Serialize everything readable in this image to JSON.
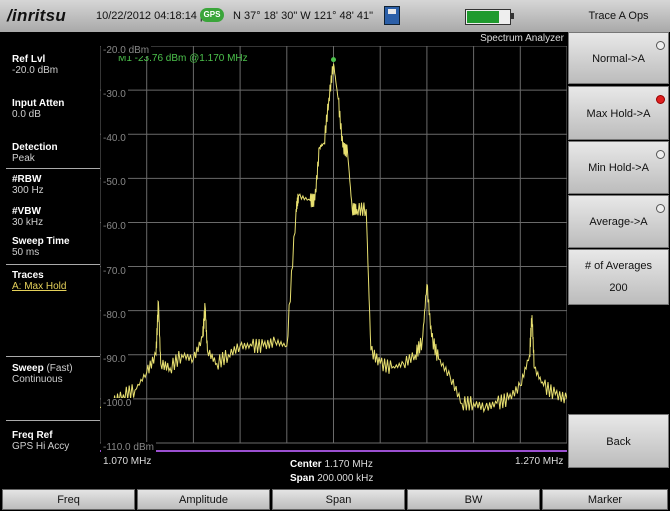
{
  "header": {
    "logo": "/inritsu",
    "datetime": "10/22/2012 04:18:14 pm",
    "gps_badge": "GPS",
    "coordinates": "N 37° 18' 30\" W 121° 48' 41\"",
    "battery_level": 0.75,
    "mode": "Spectrum Analyzer"
  },
  "left_panel": {
    "ref_lvl": {
      "label": "Ref Lvl",
      "value": "-20.0 dBm"
    },
    "input_atten": {
      "label": "Input Atten",
      "value": "0.0 dB"
    },
    "detection": {
      "label": "Detection",
      "value": "Peak"
    },
    "rbw": {
      "label": "#RBW",
      "value": "300 Hz"
    },
    "vbw": {
      "label": "#VBW",
      "value": "30 kHz"
    },
    "sweep_time": {
      "label": "Sweep Time",
      "value": "50 ms"
    },
    "traces": {
      "label": "Traces",
      "value": "A: Max Hold"
    },
    "sweep": {
      "label": "Sweep",
      "label_suffix": "(Fast)",
      "value": "Continuous"
    },
    "freq_ref": {
      "label": "Freq Ref",
      "value": "GPS Hi Accy"
    }
  },
  "plot": {
    "marker_readout": "M1 -23.76 dBm @1.170 MHz",
    "y_labels": [
      "-20.0 dBm",
      "-30.0",
      "-40.0",
      "-50.0",
      "-60.0",
      "-70.0",
      "-80.0",
      "-90.0",
      "-100.0",
      "-110.0 dBm"
    ],
    "freq_start": "1.070 MHz",
    "freq_stop": "1.270 MHz",
    "center_label": "Center",
    "center_value": "1.170 MHz",
    "span_label": "Span",
    "span_value": "200.000 kHz",
    "trace_color": "#e8e070",
    "grid_color": "#6a6a6a",
    "limit_line_color": "#9b4fd0"
  },
  "chart_data": {
    "type": "line",
    "xlabel": "",
    "ylabel": "",
    "xlim": [
      1.07,
      1.27
    ],
    "ylim": [
      -110,
      -20
    ],
    "x_unit": "MHz",
    "y_unit": "dBm",
    "series": [
      {
        "x": [
          1.07,
          1.075,
          1.08,
          1.085,
          1.09,
          1.094,
          1.095,
          1.096,
          1.1,
          1.105,
          1.11,
          1.114,
          1.115,
          1.116,
          1.12,
          1.125,
          1.13,
          1.135,
          1.14,
          1.145,
          1.15,
          1.154,
          1.155,
          1.16,
          1.162,
          1.164,
          1.166,
          1.168,
          1.17,
          1.172,
          1.174,
          1.176,
          1.178,
          1.18,
          1.184,
          1.186,
          1.19,
          1.195,
          1.2,
          1.205,
          1.208,
          1.21,
          1.212,
          1.215,
          1.22,
          1.225,
          1.23,
          1.235,
          1.24,
          1.245,
          1.25,
          1.254,
          1.255,
          1.256,
          1.26,
          1.265,
          1.27
        ],
        "y": [
          -102,
          -101,
          -99,
          -98,
          -94,
          -90,
          -78,
          -92,
          -93,
          -90,
          -91,
          -86,
          -79,
          -89,
          -92,
          -90,
          -88,
          -88,
          -88,
          -87,
          -88,
          -57,
          -54,
          -55,
          -55,
          -43,
          -42,
          -32,
          -24,
          -32,
          -43,
          -44,
          -57,
          -57,
          -57,
          -89,
          -92,
          -93,
          -92,
          -90,
          -87,
          -74,
          -86,
          -91,
          -95,
          -101,
          -101,
          -102,
          -101,
          -100,
          -97,
          -90,
          -81,
          -93,
          -97,
          -99,
          -100
        ]
      }
    ]
  },
  "softkeys": {
    "title": "Trace A Ops",
    "normal": "Normal->A",
    "max_hold": "Max Hold->A",
    "min_hold": "Min Hold->A",
    "average": "Average->A",
    "num_averages_label": "# of Averages",
    "num_averages_value": "200",
    "back": "Back"
  },
  "menu": [
    "Freq",
    "Amplitude",
    "Span",
    "BW",
    "Marker"
  ]
}
